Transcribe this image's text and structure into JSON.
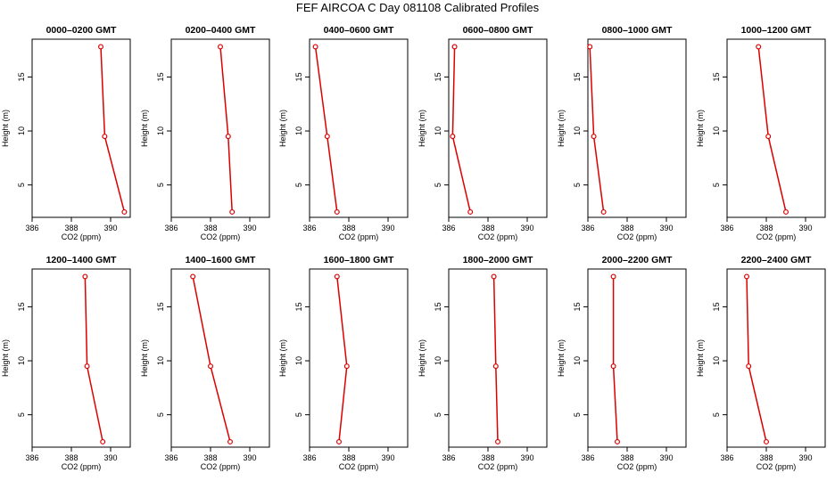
{
  "title": "FEF AIRCOA C  Day 081108  Calibrated Profiles",
  "style": {
    "line_color": "#dd0000",
    "axis_color": "#000000"
  },
  "chart_data": [
    {
      "type": "line",
      "title": "0000–0200 GMT",
      "xlabel": "CO2 (ppm)",
      "ylabel": "Height (m)",
      "xlim": [
        386,
        391
      ],
      "ylim": [
        2,
        18.5
      ],
      "xticks": [
        "386",
        "388",
        "390"
      ],
      "yticks": [
        "5",
        "10",
        "15"
      ],
      "series": [
        {
          "x": [
            389.5,
            389.7,
            390.7
          ],
          "y": [
            17.8,
            9.5,
            2.5
          ]
        }
      ]
    },
    {
      "type": "line",
      "title": "0200–0400 GMT",
      "xlabel": "CO2 (ppm)",
      "ylabel": "Height (m)",
      "xlim": [
        386,
        391
      ],
      "ylim": [
        2,
        18.5
      ],
      "xticks": [
        "386",
        "388",
        "390"
      ],
      "yticks": [
        "5",
        "10",
        "15"
      ],
      "series": [
        {
          "x": [
            388.5,
            388.9,
            389.1
          ],
          "y": [
            17.8,
            9.5,
            2.5
          ]
        }
      ]
    },
    {
      "type": "line",
      "title": "0400–0600 GMT",
      "xlabel": "CO2 (ppm)",
      "ylabel": "Height (m)",
      "xlim": [
        386,
        391
      ],
      "ylim": [
        2,
        18.5
      ],
      "xticks": [
        "386",
        "388",
        "390"
      ],
      "yticks": [
        "5",
        "10",
        "15"
      ],
      "series": [
        {
          "x": [
            386.3,
            386.9,
            387.4
          ],
          "y": [
            17.8,
            9.5,
            2.5
          ]
        }
      ]
    },
    {
      "type": "line",
      "title": "0600–0800 GMT",
      "xlabel": "CO2 (ppm)",
      "ylabel": "Height (m)",
      "xlim": [
        386,
        391
      ],
      "ylim": [
        2,
        18.5
      ],
      "xticks": [
        "386",
        "388",
        "390"
      ],
      "yticks": [
        "5",
        "10",
        "15"
      ],
      "series": [
        {
          "x": [
            386.3,
            386.2,
            387.1
          ],
          "y": [
            17.8,
            9.5,
            2.5
          ]
        }
      ]
    },
    {
      "type": "line",
      "title": "0800–1000 GMT",
      "xlabel": "CO2 (ppm)",
      "ylabel": "Height (m)",
      "xlim": [
        386,
        391
      ],
      "ylim": [
        2,
        18.5
      ],
      "xticks": [
        "386",
        "388",
        "390"
      ],
      "yticks": [
        "5",
        "10",
        "15"
      ],
      "series": [
        {
          "x": [
            386.1,
            386.3,
            386.8
          ],
          "y": [
            17.8,
            9.5,
            2.5
          ]
        }
      ]
    },
    {
      "type": "line",
      "title": "1000–1200 GMT",
      "xlabel": "CO2 (ppm)",
      "ylabel": "Height (m)",
      "xlim": [
        386,
        391
      ],
      "ylim": [
        2,
        18.5
      ],
      "xticks": [
        "386",
        "388",
        "390"
      ],
      "yticks": [
        "5",
        "10",
        "15"
      ],
      "series": [
        {
          "x": [
            387.6,
            388.1,
            389.0
          ],
          "y": [
            17.8,
            9.5,
            2.5
          ]
        }
      ]
    },
    {
      "type": "line",
      "title": "1200–1400 GMT",
      "xlabel": "CO2 (ppm)",
      "ylabel": "Height (m)",
      "xlim": [
        386,
        391
      ],
      "ylim": [
        2,
        18.5
      ],
      "xticks": [
        "386",
        "388",
        "390"
      ],
      "yticks": [
        "5",
        "10",
        "15"
      ],
      "series": [
        {
          "x": [
            388.7,
            388.8,
            389.6
          ],
          "y": [
            17.8,
            9.5,
            2.5
          ]
        }
      ]
    },
    {
      "type": "line",
      "title": "1400–1600 GMT",
      "xlabel": "CO2 (ppm)",
      "ylabel": "Height (m)",
      "xlim": [
        386,
        391
      ],
      "ylim": [
        2,
        18.5
      ],
      "xticks": [
        "386",
        "388",
        "390"
      ],
      "yticks": [
        "5",
        "10",
        "15"
      ],
      "series": [
        {
          "x": [
            387.1,
            388.0,
            389.0
          ],
          "y": [
            17.8,
            9.5,
            2.5
          ]
        }
      ]
    },
    {
      "type": "line",
      "title": "1600–1800 GMT",
      "xlabel": "CO2 (ppm)",
      "ylabel": "Height (m)",
      "xlim": [
        386,
        391
      ],
      "ylim": [
        2,
        18.5
      ],
      "xticks": [
        "386",
        "388",
        "390"
      ],
      "yticks": [
        "5",
        "10",
        "15"
      ],
      "series": [
        {
          "x": [
            387.4,
            387.9,
            387.5
          ],
          "y": [
            17.8,
            9.5,
            2.5
          ]
        }
      ]
    },
    {
      "type": "line",
      "title": "1800–2000 GMT",
      "xlabel": "CO2 (ppm)",
      "ylabel": "Height (m)",
      "xlim": [
        386,
        391
      ],
      "ylim": [
        2,
        18.5
      ],
      "xticks": [
        "386",
        "388",
        "390"
      ],
      "yticks": [
        "5",
        "10",
        "15"
      ],
      "series": [
        {
          "x": [
            388.3,
            388.4,
            388.5
          ],
          "y": [
            17.8,
            9.5,
            2.5
          ]
        }
      ]
    },
    {
      "type": "line",
      "title": "2000–2200 GMT",
      "xlabel": "CO2 (ppm)",
      "ylabel": "Height (m)",
      "xlim": [
        386,
        391
      ],
      "ylim": [
        2,
        18.5
      ],
      "xticks": [
        "386",
        "388",
        "390"
      ],
      "yticks": [
        "5",
        "10",
        "15"
      ],
      "series": [
        {
          "x": [
            387.3,
            387.3,
            387.5
          ],
          "y": [
            17.8,
            9.5,
            2.5
          ]
        }
      ]
    },
    {
      "type": "line",
      "title": "2200–2400 GMT",
      "xlabel": "CO2 (ppm)",
      "ylabel": "Height (m)",
      "xlim": [
        386,
        391
      ],
      "ylim": [
        2,
        18.5
      ],
      "xticks": [
        "386",
        "388",
        "390"
      ],
      "yticks": [
        "5",
        "10",
        "15"
      ],
      "series": [
        {
          "x": [
            387.0,
            387.1,
            388.0
          ],
          "y": [
            17.8,
            9.5,
            2.5
          ]
        }
      ]
    }
  ]
}
